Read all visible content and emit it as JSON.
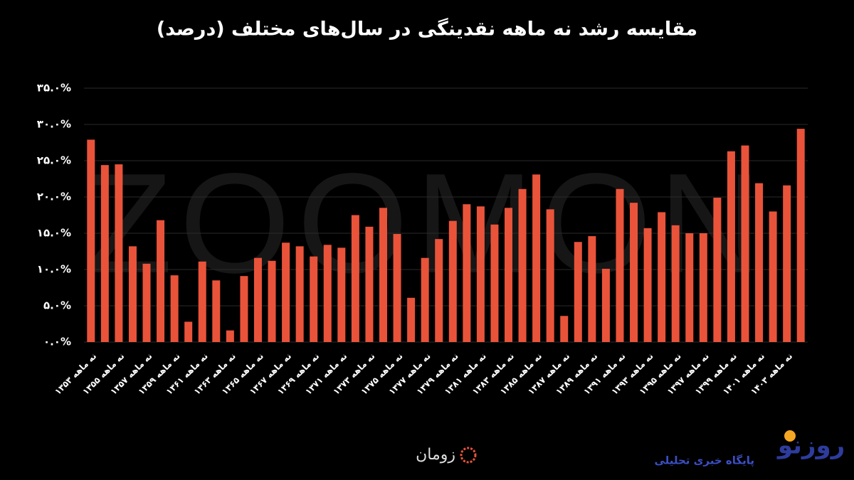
{
  "chart_data": {
    "type": "bar",
    "title": "مقایسه رشد نه ماهه نقدینگی در سال‌های مختلف (درصد)",
    "watermark": "ZOOMON",
    "color": "#e9533a",
    "grid": true,
    "categories": [
      "نه ماهه ۱۳۵۳",
      null,
      "نه ماهه ۱۳۵۵",
      null,
      "نه ماهه ۱۳۵۷",
      null,
      "نه ماهه ۱۳۵۹",
      null,
      "نه ماهه ۱۳۶۱",
      null,
      "نه ماهه ۱۳۶۳",
      null,
      "نه ماهه ۱۳۶۵",
      null,
      "نه ماهه ۱۳۶۷",
      null,
      "نه ماهه ۱۳۶۹",
      null,
      "نه ماهه ۱۳۷۱",
      null,
      "نه ماهه ۱۳۷۳",
      null,
      "نه ماهه ۱۳۷۵",
      null,
      "نه ماهه ۱۳۷۷",
      null,
      "نه ماهه ۱۳۷۹",
      null,
      "نه ماهه ۱۳۸۱",
      null,
      "نه ماهه ۱۳۸۳",
      null,
      "نه ماهه ۱۳۸۵",
      null,
      "نه ماهه ۱۳۸۷",
      null,
      "نه ماهه ۱۳۸۹",
      null,
      "نه ماهه ۱۳۹۱",
      null,
      "نه ماهه ۱۳۹۳",
      null,
      "نه ماهه ۱۳۹۵",
      null,
      "نه ماهه ۱۳۹۷",
      null,
      "نه ماهه ۱۳۹۹",
      null,
      "نه ماهه ۱۴۰۱",
      null,
      "نه ماهه ۱۴۰۳",
      null
    ],
    "values": [
      27.9,
      24.4,
      24.5,
      13.2,
      10.8,
      16.8,
      9.2,
      2.8,
      11.1,
      8.5,
      1.6,
      9.1,
      11.6,
      11.2,
      13.7,
      13.2,
      11.8,
      13.4,
      13.0,
      17.5,
      15.9,
      18.5,
      14.9,
      6.1,
      11.6,
      14.2,
      16.7,
      19.0,
      18.7,
      16.2,
      18.5,
      21.1,
      23.1,
      18.3,
      3.6,
      13.8,
      14.6,
      10.1,
      21.1,
      19.2,
      15.7,
      17.9,
      16.1,
      15.0,
      15.0,
      19.9,
      26.3,
      27.1,
      21.9,
      18.0,
      21.6,
      29.4
    ],
    "ylim": [
      0,
      35
    ],
    "yticks": [
      {
        "value": 0,
        "label": "۰.۰%"
      },
      {
        "value": 5,
        "label": "۵.۰%"
      },
      {
        "value": 10,
        "label": "۱۰.۰%"
      },
      {
        "value": 15,
        "label": "۱۵.۰%"
      },
      {
        "value": 20,
        "label": "۲۰.۰%"
      },
      {
        "value": 25,
        "label": "۲۵.۰%"
      },
      {
        "value": 30,
        "label": "۳۰.۰%"
      },
      {
        "value": 35,
        "label": "۳۵.۰%"
      }
    ]
  },
  "footer": {
    "brand": "زومان",
    "logo": "روزنو",
    "tagline": "پایگاه خبری تحلیلی"
  }
}
